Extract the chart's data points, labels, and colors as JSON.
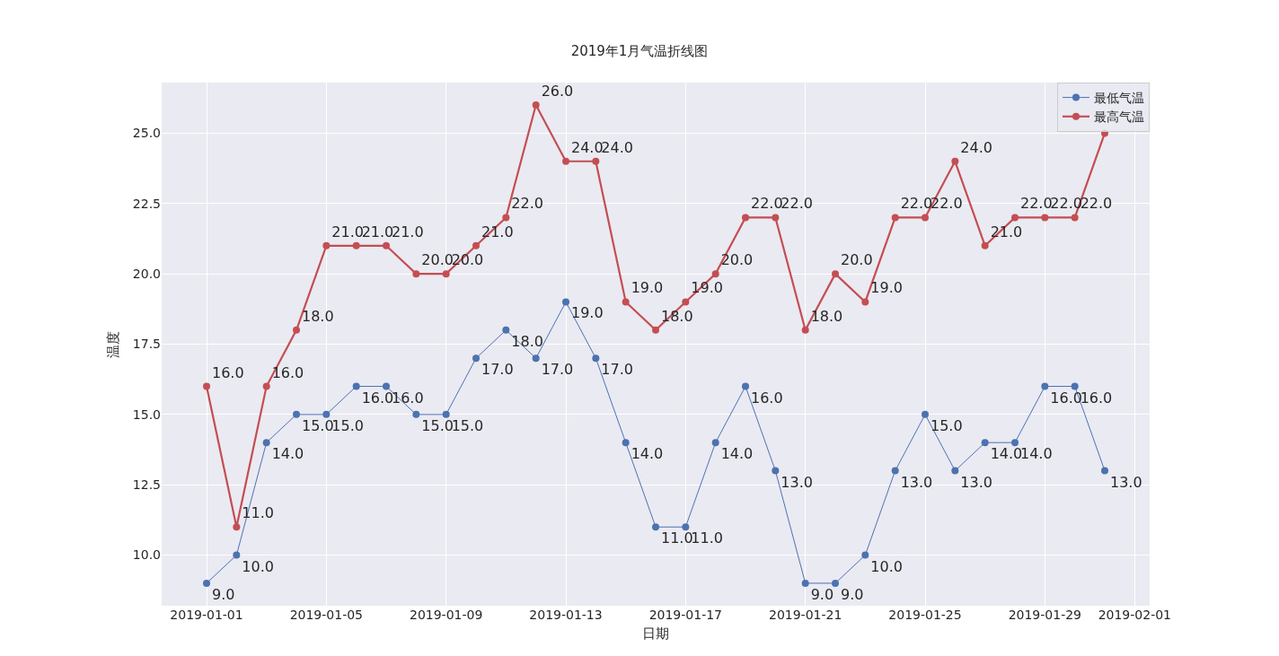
{
  "chart_data": {
    "type": "line",
    "title": "2019年1月气温折线图",
    "xlabel": "日期",
    "ylabel": "温度",
    "x": [
      "2019-01-01",
      "2019-01-02",
      "2019-01-03",
      "2019-01-04",
      "2019-01-05",
      "2019-01-06",
      "2019-01-07",
      "2019-01-08",
      "2019-01-09",
      "2019-01-10",
      "2019-01-11",
      "2019-01-12",
      "2019-01-13",
      "2019-01-14",
      "2019-01-15",
      "2019-01-16",
      "2019-01-17",
      "2019-01-18",
      "2019-01-19",
      "2019-01-20",
      "2019-01-21",
      "2019-01-22",
      "2019-01-23",
      "2019-01-24",
      "2019-01-25",
      "2019-01-26",
      "2019-01-27",
      "2019-01-28",
      "2019-01-29",
      "2019-01-30",
      "2019-01-31"
    ],
    "series": [
      {
        "name": "最低气温",
        "color": "#4c72b0",
        "values": [
          9,
          10,
          14,
          15,
          15,
          16,
          16,
          15,
          15,
          17,
          18,
          17,
          19,
          17,
          14,
          11,
          11,
          14,
          16,
          13,
          9,
          9,
          10,
          13,
          15,
          13,
          14,
          14,
          16,
          16,
          13
        ],
        "value_labels": [
          "9.0",
          "10.0",
          "14.0",
          "15.0",
          "15.0",
          "16.0",
          "16.0",
          "15.0",
          "15.0",
          "17.0",
          "18.0",
          "17.0",
          "19.0",
          "17.0",
          "14.0",
          "11.0",
          "11.0",
          "14.0",
          "16.0",
          "13.0",
          "9.0",
          "9.0",
          "10.0",
          "13.0",
          "15.0",
          "13.0",
          "14.0",
          "14.0",
          "16.0",
          "16.0",
          "13.0"
        ]
      },
      {
        "name": "最高气温",
        "color": "#c44e52",
        "values": [
          16,
          11,
          16,
          18,
          21,
          21,
          21,
          20,
          20,
          21,
          22,
          26,
          24,
          24,
          19,
          18,
          19,
          20,
          22,
          22,
          18,
          20,
          19,
          22,
          22,
          24,
          21,
          22,
          22,
          22,
          25
        ],
        "value_labels": [
          "16.0",
          "11.0",
          "16.0",
          "18.0",
          "21.0",
          "21.0",
          "21.0",
          "20.0",
          "20.0",
          "21.0",
          "22.0",
          "26.0",
          "24.0",
          "24.0",
          "19.0",
          "18.0",
          "19.0",
          "20.0",
          "22.0",
          "22.0",
          "18.0",
          "20.0",
          "19.0",
          "22.0",
          "22.0",
          "24.0",
          "21.0",
          "22.0",
          "22.0",
          "22.0",
          null
        ]
      }
    ],
    "xlim": [
      "2018-12-30T12:00",
      "2019-02-01T12:00"
    ],
    "xticks": [
      "2019-01-01",
      "2019-01-05",
      "2019-01-09",
      "2019-01-13",
      "2019-01-17",
      "2019-01-21",
      "2019-01-25",
      "2019-01-29",
      "2019-02-01"
    ],
    "ylim": [
      8.2,
      26.8
    ],
    "yticks": [
      {
        "value": 10,
        "label": "10.0"
      },
      {
        "value": 12.5,
        "label": "12.5"
      },
      {
        "value": 15,
        "label": "15.0"
      },
      {
        "value": 17.5,
        "label": "17.5"
      },
      {
        "value": 20,
        "label": "20.0"
      },
      {
        "value": 22.5,
        "label": "22.5"
      },
      {
        "value": 25,
        "label": "25.0"
      }
    ],
    "grid": true,
    "legend": "top right",
    "marker": "circle",
    "line_style": "solid"
  }
}
